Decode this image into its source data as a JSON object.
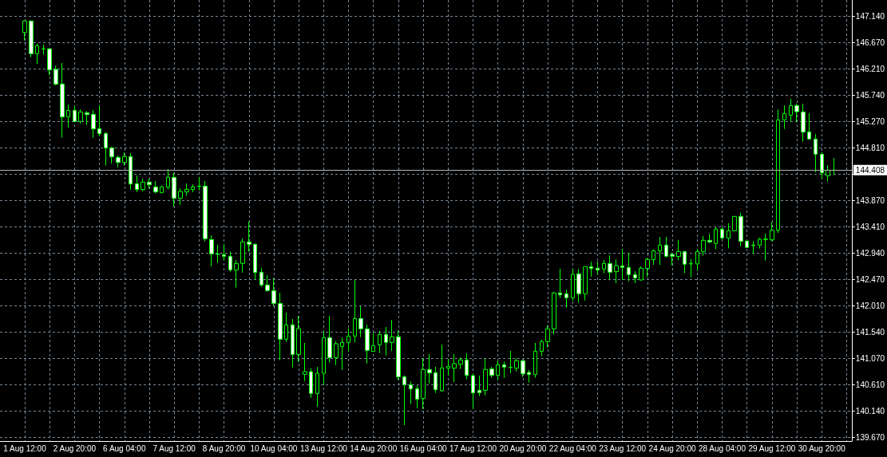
{
  "chart_data": {
    "type": "candlestick",
    "color": "#00ff00",
    "categories": [
      "1 Aug 12:00",
      null,
      null,
      null,
      null,
      null,
      null,
      null,
      "2 Aug 20:00",
      null,
      null,
      null,
      null,
      null,
      null,
      null,
      "6 Aug 04:00",
      null,
      null,
      null,
      null,
      null,
      null,
      null,
      "7 Aug 12:00",
      null,
      null,
      null,
      null,
      null,
      null,
      null,
      "8 Aug 20:00",
      null,
      null,
      null,
      null,
      null,
      null,
      null,
      "10 Aug 04:00",
      null,
      null,
      null,
      null,
      null,
      null,
      null,
      "13 Aug 12:00",
      null,
      null,
      null,
      null,
      null,
      null,
      null,
      "14 Aug 20:00",
      null,
      null,
      null,
      null,
      null,
      null,
      null,
      "16 Aug 04:00",
      null,
      null,
      null,
      null,
      null,
      null,
      null,
      "17 Aug 12:00",
      null,
      null,
      null,
      null,
      null,
      null,
      null,
      "20 Aug 20:00",
      null,
      null,
      null,
      null,
      null,
      null,
      null,
      "22 Aug 04:00",
      null,
      null,
      null,
      null,
      null,
      null,
      null,
      "23 Aug 12:00",
      null,
      null,
      null,
      null,
      null,
      null,
      null,
      "24 Aug 20:00",
      null,
      null,
      null,
      null,
      null,
      null,
      null,
      "28 Aug 04:00",
      null,
      null,
      null,
      null,
      null,
      null,
      null,
      "29 Aug 12:00",
      null,
      null,
      null,
      null,
      null,
      null,
      null,
      "30 Aug 20:00",
      null,
      null
    ],
    "ohlc": [
      [
        146.852,
        147.06,
        146.711,
        147.055
      ],
      [
        147.055,
        147.064,
        146.414,
        146.475
      ],
      [
        146.475,
        146.654,
        146.296,
        146.616
      ],
      [
        146.56,
        146.635,
        146.456,
        146.56
      ],
      [
        146.56,
        146.574,
        146.093,
        146.187
      ],
      [
        146.197,
        146.263,
        145.914,
        145.933
      ],
      [
        145.938,
        146.31,
        144.985,
        145.353
      ],
      [
        145.353,
        145.575,
        145.165,
        145.471
      ],
      [
        145.471,
        145.556,
        145.259,
        145.273
      ],
      [
        145.273,
        145.49,
        145.235,
        145.443
      ],
      [
        145.428,
        145.457,
        145.212,
        145.395
      ],
      [
        145.4,
        145.476,
        144.985,
        145.141
      ],
      [
        145.146,
        145.556,
        145.009,
        145.056
      ],
      [
        145.061,
        145.084,
        144.491,
        144.802
      ],
      [
        144.806,
        144.825,
        144.528,
        144.646
      ],
      [
        144.637,
        144.67,
        144.458,
        144.547
      ],
      [
        144.547,
        144.726,
        144.491,
        144.651
      ],
      [
        144.651,
        144.712,
        144.066,
        144.165
      ],
      [
        144.17,
        144.316,
        144.019,
        144.066
      ],
      [
        144.066,
        144.26,
        144.033,
        144.198
      ],
      [
        144.198,
        144.255,
        144.08,
        144.151
      ],
      [
        144.113,
        144.217,
        143.996,
        144.024
      ],
      [
        144.01,
        144.137,
        144.005,
        144.115
      ],
      [
        144.108,
        144.429,
        144.066,
        144.283
      ],
      [
        144.283,
        144.363,
        143.764,
        143.91
      ],
      [
        143.91,
        144.09,
        143.793,
        144.033
      ],
      [
        144.023,
        144.174,
        143.953,
        144.071
      ],
      [
        144.066,
        144.16,
        144.019,
        144.113
      ],
      [
        144.118,
        144.287,
        144.052,
        144.127
      ],
      [
        144.127,
        144.217,
        143.147,
        143.194
      ],
      [
        143.18,
        143.255,
        142.704,
        142.925
      ],
      [
        142.918,
        143.09,
        142.765,
        142.923
      ],
      [
        142.911,
        143.1,
        142.807,
        142.883
      ],
      [
        142.883,
        142.968,
        142.609,
        142.642
      ],
      [
        142.642,
        142.817,
        142.327,
        142.756
      ],
      [
        142.756,
        143.199,
        142.595,
        143.137
      ],
      [
        143.137,
        143.5,
        142.963,
        143.095
      ],
      [
        143.095,
        143.114,
        142.468,
        142.595
      ],
      [
        142.6,
        142.675,
        142.341,
        142.374
      ],
      [
        142.374,
        142.548,
        142.256,
        142.275
      ],
      [
        142.275,
        142.496,
        142.006,
        142.048
      ],
      [
        142.048,
        142.237,
        141.04,
        141.412
      ],
      [
        141.412,
        141.884,
        141.365,
        141.667
      ],
      [
        141.667,
        141.77,
        140.912,
        141.143
      ],
      [
        141.143,
        141.827,
        141.007,
        141.601
      ],
      [
        140.79,
        141.346,
        140.672,
        140.837
      ],
      [
        140.837,
        140.899,
        140.371,
        140.451
      ],
      [
        140.451,
        140.922,
        140.215,
        140.809
      ],
      [
        140.809,
        141.559,
        140.602,
        141.441
      ],
      [
        141.441,
        141.827,
        140.998,
        141.087
      ],
      [
        141.087,
        141.379,
        140.955,
        141.332
      ],
      [
        141.285,
        141.441,
        140.87,
        141.356
      ],
      [
        141.356,
        141.606,
        141.205,
        141.469
      ],
      [
        141.469,
        142.464,
        141.356,
        141.78
      ],
      [
        141.78,
        141.997,
        141.45,
        141.596
      ],
      [
        141.596,
        141.672,
        140.983,
        141.214
      ],
      [
        141.196,
        141.526,
        141.19,
        141.299
      ],
      [
        141.313,
        141.559,
        141.167,
        141.497
      ],
      [
        141.497,
        141.629,
        141.125,
        141.356
      ],
      [
        141.356,
        141.757,
        141.205,
        141.455
      ],
      [
        141.455,
        141.568,
        140.686,
        140.743
      ],
      [
        140.748,
        140.771,
        139.89,
        140.602
      ],
      [
        140.606,
        140.663,
        140.262,
        140.531
      ],
      [
        140.536,
        140.592,
        140.192,
        140.347
      ],
      [
        140.361,
        141.073,
        140.177,
        140.875
      ],
      [
        140.875,
        141.148,
        140.63,
        140.814
      ],
      [
        140.819,
        140.922,
        140.46,
        140.517
      ],
      [
        140.498,
        141.318,
        140.484,
        140.903
      ],
      [
        140.899,
        141.064,
        140.767,
        140.932
      ],
      [
        140.899,
        141.149,
        140.654,
        140.979
      ],
      [
        140.969,
        141.092,
        140.885,
        141.045
      ],
      [
        141.045,
        141.163,
        140.701,
        140.771
      ],
      [
        140.767,
        140.804,
        140.178,
        140.46
      ],
      [
        140.507,
        140.767,
        140.404,
        140.465
      ],
      [
        140.507,
        141.064,
        140.418,
        140.875
      ],
      [
        140.885,
        140.922,
        140.734,
        140.771
      ],
      [
        140.771,
        141.026,
        140.687,
        140.96
      ],
      [
        140.96,
        141.017,
        140.729,
        140.918
      ],
      [
        140.911,
        141.205,
        140.809,
        140.915
      ],
      [
        140.899,
        141.073,
        140.842,
        141.031
      ],
      [
        141.031,
        141.054,
        140.743,
        140.8
      ],
      [
        140.823,
        140.866,
        140.644,
        140.786
      ],
      [
        140.786,
        141.346,
        140.729,
        141.2
      ],
      [
        141.2,
        141.403,
        141.111,
        141.37
      ],
      [
        141.37,
        141.653,
        141.266,
        141.596
      ],
      [
        141.596,
        142.252,
        141.493,
        142.233
      ],
      [
        142.233,
        142.662,
        142.143,
        142.2
      ],
      [
        142.219,
        142.294,
        141.973,
        142.148
      ],
      [
        142.148,
        142.657,
        142.091,
        142.563
      ],
      [
        142.572,
        142.657,
        142.06,
        142.219
      ],
      [
        142.219,
        142.7,
        142.1,
        142.699
      ],
      [
        142.699,
        142.789,
        142.525,
        142.666
      ],
      [
        142.671,
        142.789,
        142.558,
        142.638
      ],
      [
        142.657,
        142.817,
        142.582,
        142.756
      ],
      [
        142.756,
        142.902,
        142.468,
        142.6
      ],
      [
        142.61,
        142.831,
        142.407,
        142.718
      ],
      [
        142.714,
        143.006,
        142.468,
        142.685
      ],
      [
        142.685,
        142.94,
        142.44,
        142.558
      ],
      [
        142.558,
        142.619,
        142.407,
        142.497
      ],
      [
        142.464,
        142.704,
        142.45,
        142.671
      ],
      [
        142.666,
        142.855,
        142.516,
        142.827
      ],
      [
        142.822,
        143.006,
        142.732,
        142.982
      ],
      [
        142.978,
        143.227,
        142.732,
        143.081
      ],
      [
        143.081,
        143.227,
        142.864,
        142.883
      ],
      [
        142.916,
        142.949,
        142.723,
        142.883
      ],
      [
        142.879,
        143.171,
        142.813,
        142.968
      ],
      [
        142.968,
        142.975,
        142.582,
        142.742
      ],
      [
        142.747,
        142.831,
        142.511,
        142.756
      ],
      [
        142.747,
        143.011,
        142.629,
        142.968
      ],
      [
        142.968,
        143.242,
        142.893,
        143.166
      ],
      [
        143.166,
        143.279,
        143.114,
        143.138
      ],
      [
        143.109,
        143.397,
        143.006,
        143.364
      ],
      [
        143.364,
        143.397,
        143.185,
        143.208
      ],
      [
        143.204,
        143.468,
        143.024,
        143.336
      ],
      [
        143.336,
        143.595,
        143.327,
        143.59
      ],
      [
        143.59,
        143.656,
        143.053,
        143.147
      ],
      [
        143.152,
        143.166,
        143.03,
        143.039
      ],
      [
        143.072,
        143.152,
        142.925,
        143.081
      ],
      [
        143.081,
        143.213,
        143.02,
        143.185
      ],
      [
        143.18,
        143.288,
        142.808,
        143.189
      ],
      [
        143.175,
        143.491,
        143.152,
        143.345
      ],
      [
        143.345,
        145.485,
        143.298,
        145.301
      ],
      [
        145.301,
        145.56,
        145.141,
        145.414
      ],
      [
        145.386,
        145.674,
        145.268,
        145.556
      ],
      [
        145.556,
        145.589,
        145.259,
        145.447
      ],
      [
        145.443,
        145.589,
        144.915,
        145.084
      ],
      [
        145.089,
        145.419,
        144.948,
        144.962
      ],
      [
        144.962,
        145.051,
        144.373,
        144.693
      ],
      [
        144.693,
        144.726,
        144.255,
        144.363
      ],
      [
        144.311,
        144.5,
        144.208,
        144.41
      ],
      [
        144.41,
        144.622,
        144.325,
        144.408
      ]
    ],
    "ylim": [
      139.607,
      147.427
    ],
    "yticks": [
      {
        "value": 139.67,
        "label": "139.670"
      },
      {
        "value": 140.14,
        "label": "140.140"
      },
      {
        "value": 140.61,
        "label": "140.610"
      },
      {
        "value": 141.07,
        "label": "141.070"
      },
      {
        "value": 141.54,
        "label": "141.540"
      },
      {
        "value": 142.01,
        "label": "142.010"
      },
      {
        "value": 142.47,
        "label": "142.470"
      },
      {
        "value": 142.94,
        "label": "142.940"
      },
      {
        "value": 143.41,
        "label": "143.410"
      },
      {
        "value": 143.87,
        "label": "143.870"
      },
      {
        "value": 144.34,
        "label": null
      },
      {
        "value": 144.81,
        "label": "144.810"
      },
      {
        "value": 145.27,
        "label": "145.270"
      },
      {
        "value": 145.74,
        "label": "145.740"
      },
      {
        "value": 146.21,
        "label": "146.210"
      },
      {
        "value": 146.67,
        "label": "146.670"
      },
      {
        "value": 147.14,
        "label": "147.140"
      }
    ],
    "grid": true,
    "ref_lines": [
      {
        "axis": "y",
        "value": 144.408,
        "label": "144.408",
        "color": "#b4b4b4"
      }
    ]
  }
}
